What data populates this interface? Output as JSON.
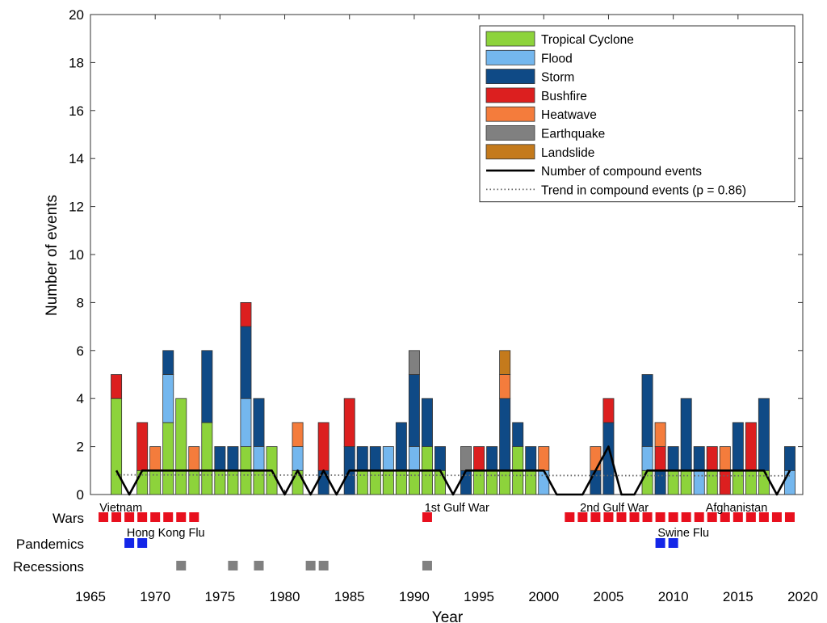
{
  "chart_data": {
    "type": "bar",
    "stacked": true,
    "xlabel": "Year",
    "ylabel": "Number of events",
    "xlim": [
      1965,
      2020
    ],
    "ylim": [
      0,
      20
    ],
    "xticks": [
      1965,
      1970,
      1975,
      1980,
      1985,
      1990,
      1995,
      2000,
      2005,
      2010,
      2015,
      2020
    ],
    "yticks": [
      0,
      2,
      4,
      6,
      8,
      10,
      12,
      14,
      16,
      18,
      20
    ],
    "legend_position": "top-right",
    "grid": false,
    "colors": {
      "Tropical Cyclone": "#8dd33b",
      "Flood": "#74b7ee",
      "Storm": "#0f4a86",
      "Bushfire": "#dc1f1f",
      "Heatwave": "#f47c3c",
      "Earthquake": "#808080",
      "Landslide": "#c47a1c"
    },
    "legend": [
      {
        "label": "Tropical Cyclone",
        "kind": "patch",
        "color": "#8dd33b"
      },
      {
        "label": "Flood",
        "kind": "patch",
        "color": "#74b7ee"
      },
      {
        "label": "Storm",
        "kind": "patch",
        "color": "#0f4a86"
      },
      {
        "label": "Bushfire",
        "kind": "patch",
        "color": "#dc1f1f"
      },
      {
        "label": "Heatwave",
        "kind": "patch",
        "color": "#f47c3c"
      },
      {
        "label": "Earthquake",
        "kind": "patch",
        "color": "#808080"
      },
      {
        "label": "Landslide",
        "kind": "patch",
        "color": "#c47a1c"
      },
      {
        "label": "Number of compound events",
        "kind": "line"
      },
      {
        "label": "Trend in compound events (p = 0.86)",
        "kind": "dotted"
      }
    ],
    "years": [
      {
        "year": 1967,
        "stack": [
          [
            "Tropical Cyclone",
            4
          ],
          [
            "Bushfire",
            1
          ]
        ]
      },
      {
        "year": 1969,
        "stack": [
          [
            "Tropical Cyclone",
            1
          ],
          [
            "Bushfire",
            2
          ]
        ]
      },
      {
        "year": 1970,
        "stack": [
          [
            "Tropical Cyclone",
            1
          ],
          [
            "Heatwave",
            1
          ]
        ]
      },
      {
        "year": 1971,
        "stack": [
          [
            "Tropical Cyclone",
            3
          ],
          [
            "Flood",
            2
          ],
          [
            "Storm",
            1
          ]
        ]
      },
      {
        "year": 1972,
        "stack": [
          [
            "Tropical Cyclone",
            4
          ]
        ]
      },
      {
        "year": 1973,
        "stack": [
          [
            "Tropical Cyclone",
            1
          ],
          [
            "Heatwave",
            1
          ]
        ]
      },
      {
        "year": 1974,
        "stack": [
          [
            "Tropical Cyclone",
            3
          ],
          [
            "Storm",
            3
          ]
        ]
      },
      {
        "year": 1975,
        "stack": [
          [
            "Tropical Cyclone",
            1
          ],
          [
            "Storm",
            1
          ]
        ]
      },
      {
        "year": 1976,
        "stack": [
          [
            "Tropical Cyclone",
            1
          ],
          [
            "Storm",
            1
          ]
        ]
      },
      {
        "year": 1977,
        "stack": [
          [
            "Tropical Cyclone",
            2
          ],
          [
            "Flood",
            2
          ],
          [
            "Storm",
            3
          ],
          [
            "Bushfire",
            1
          ]
        ]
      },
      {
        "year": 1978,
        "stack": [
          [
            "Tropical Cyclone",
            1
          ],
          [
            "Flood",
            1
          ],
          [
            "Storm",
            2
          ]
        ]
      },
      {
        "year": 1979,
        "stack": [
          [
            "Tropical Cyclone",
            2
          ]
        ]
      },
      {
        "year": 1981,
        "stack": [
          [
            "Tropical Cyclone",
            1
          ],
          [
            "Flood",
            1
          ],
          [
            "Heatwave",
            1
          ]
        ]
      },
      {
        "year": 1983,
        "stack": [
          [
            "Storm",
            1
          ],
          [
            "Bushfire",
            2
          ]
        ]
      },
      {
        "year": 1985,
        "stack": [
          [
            "Storm",
            2
          ],
          [
            "Bushfire",
            2
          ]
        ]
      },
      {
        "year": 1986,
        "stack": [
          [
            "Tropical Cyclone",
            1
          ],
          [
            "Storm",
            1
          ]
        ]
      },
      {
        "year": 1987,
        "stack": [
          [
            "Tropical Cyclone",
            1
          ],
          [
            "Storm",
            1
          ]
        ]
      },
      {
        "year": 1988,
        "stack": [
          [
            "Tropical Cyclone",
            1
          ],
          [
            "Flood",
            1
          ]
        ]
      },
      {
        "year": 1989,
        "stack": [
          [
            "Tropical Cyclone",
            1
          ],
          [
            "Storm",
            2
          ]
        ]
      },
      {
        "year": 1990,
        "stack": [
          [
            "Tropical Cyclone",
            1
          ],
          [
            "Flood",
            1
          ],
          [
            "Storm",
            3
          ],
          [
            "Earthquake",
            1
          ]
        ]
      },
      {
        "year": 1991,
        "stack": [
          [
            "Tropical Cyclone",
            2
          ],
          [
            "Storm",
            2
          ]
        ]
      },
      {
        "year": 1992,
        "stack": [
          [
            "Tropical Cyclone",
            1
          ],
          [
            "Storm",
            1
          ]
        ]
      },
      {
        "year": 1994,
        "stack": [
          [
            "Storm",
            1
          ],
          [
            "Earthquake",
            1
          ]
        ]
      },
      {
        "year": 1995,
        "stack": [
          [
            "Tropical Cyclone",
            1
          ],
          [
            "Bushfire",
            1
          ]
        ]
      },
      {
        "year": 1996,
        "stack": [
          [
            "Tropical Cyclone",
            1
          ],
          [
            "Storm",
            1
          ]
        ]
      },
      {
        "year": 1997,
        "stack": [
          [
            "Tropical Cyclone",
            1
          ],
          [
            "Storm",
            3
          ],
          [
            "Heatwave",
            1
          ],
          [
            "Landslide",
            1
          ]
        ]
      },
      {
        "year": 1998,
        "stack": [
          [
            "Tropical Cyclone",
            2
          ],
          [
            "Storm",
            1
          ]
        ]
      },
      {
        "year": 1999,
        "stack": [
          [
            "Tropical Cyclone",
            1
          ],
          [
            "Storm",
            1
          ]
        ]
      },
      {
        "year": 2000,
        "stack": [
          [
            "Flood",
            1
          ],
          [
            "Heatwave",
            1
          ]
        ]
      },
      {
        "year": 2004,
        "stack": [
          [
            "Storm",
            1
          ],
          [
            "Heatwave",
            1
          ]
        ]
      },
      {
        "year": 2005,
        "stack": [
          [
            "Storm",
            3
          ],
          [
            "Bushfire",
            1
          ]
        ]
      },
      {
        "year": 2008,
        "stack": [
          [
            "Tropical Cyclone",
            1
          ],
          [
            "Flood",
            1
          ],
          [
            "Storm",
            3
          ]
        ]
      },
      {
        "year": 2009,
        "stack": [
          [
            "Storm",
            1
          ],
          [
            "Bushfire",
            1
          ],
          [
            "Heatwave",
            1
          ]
        ]
      },
      {
        "year": 2010,
        "stack": [
          [
            "Tropical Cyclone",
            1
          ],
          [
            "Storm",
            1
          ]
        ]
      },
      {
        "year": 2011,
        "stack": [
          [
            "Tropical Cyclone",
            1
          ],
          [
            "Storm",
            3
          ]
        ]
      },
      {
        "year": 2012,
        "stack": [
          [
            "Flood",
            1
          ],
          [
            "Storm",
            1
          ]
        ]
      },
      {
        "year": 2013,
        "stack": [
          [
            "Tropical Cyclone",
            1
          ],
          [
            "Bushfire",
            1
          ]
        ]
      },
      {
        "year": 2014,
        "stack": [
          [
            "Bushfire",
            1
          ],
          [
            "Heatwave",
            1
          ]
        ]
      },
      {
        "year": 2015,
        "stack": [
          [
            "Tropical Cyclone",
            1
          ],
          [
            "Storm",
            2
          ]
        ]
      },
      {
        "year": 2016,
        "stack": [
          [
            "Tropical Cyclone",
            1
          ],
          [
            "Bushfire",
            2
          ]
        ]
      },
      {
        "year": 2017,
        "stack": [
          [
            "Tropical Cyclone",
            1
          ],
          [
            "Storm",
            3
          ]
        ]
      },
      {
        "year": 2019,
        "stack": [
          [
            "Flood",
            1
          ],
          [
            "Storm",
            1
          ]
        ]
      }
    ],
    "compound_events": {
      "x": [
        1967,
        1968,
        1969,
        1970,
        1971,
        1972,
        1973,
        1974,
        1975,
        1976,
        1977,
        1978,
        1979,
        1980,
        1981,
        1982,
        1983,
        1984,
        1985,
        1986,
        1987,
        1988,
        1989,
        1990,
        1991,
        1992,
        1993,
        1994,
        1995,
        1996,
        1997,
        1998,
        1999,
        2000,
        2001,
        2002,
        2003,
        2004,
        2005,
        2006,
        2007,
        2008,
        2009,
        2010,
        2011,
        2012,
        2013,
        2014,
        2015,
        2016,
        2017,
        2018,
        2019
      ],
      "y": [
        1,
        0,
        1,
        1,
        1,
        1,
        1,
        1,
        1,
        1,
        1,
        1,
        1,
        0,
        1,
        0,
        1,
        0,
        1,
        1,
        1,
        1,
        1,
        1,
        1,
        1,
        0,
        1,
        1,
        1,
        1,
        1,
        1,
        1,
        0,
        0,
        0,
        1,
        2,
        0,
        0,
        1,
        1,
        1,
        1,
        1,
        1,
        1,
        1,
        1,
        1,
        0,
        1
      ]
    },
    "trend": {
      "x": [
        1967,
        2019
      ],
      "y": [
        0.82,
        0.78
      ]
    },
    "context_rows": [
      {
        "label": "Wars",
        "color": "#e8101e",
        "years": [
          1966,
          1967,
          1968,
          1969,
          1970,
          1971,
          1972,
          1973,
          1991,
          2002,
          2003,
          2004,
          2005,
          2006,
          2007,
          2008,
          2009,
          2010,
          2011,
          2012,
          2013,
          2014,
          2015,
          2016,
          2017,
          2018,
          2019
        ]
      },
      {
        "label": "Pandemics",
        "color": "#1426e8",
        "years": [
          1968,
          1969,
          2009,
          2010
        ]
      },
      {
        "label": "Recessions",
        "color": "#808080",
        "years": [
          1972,
          1976,
          1978,
          1982,
          1983,
          1991
        ]
      }
    ],
    "annotations": [
      {
        "row": "Wars",
        "text": "Vietnam",
        "year": 1965.7
      },
      {
        "row": "Wars",
        "text": "1st Gulf War",
        "year": 1990.8
      },
      {
        "row": "Wars",
        "text": "2nd Gulf War",
        "year": 2002.8
      },
      {
        "row": "Wars",
        "text": "Afghanistan",
        "year": 2012.5
      },
      {
        "row": "Pandemics",
        "text": "Hong Kong Flu",
        "year": 1967.8
      },
      {
        "row": "Pandemics",
        "text": "Swine Flu",
        "year": 2008.8
      }
    ]
  }
}
